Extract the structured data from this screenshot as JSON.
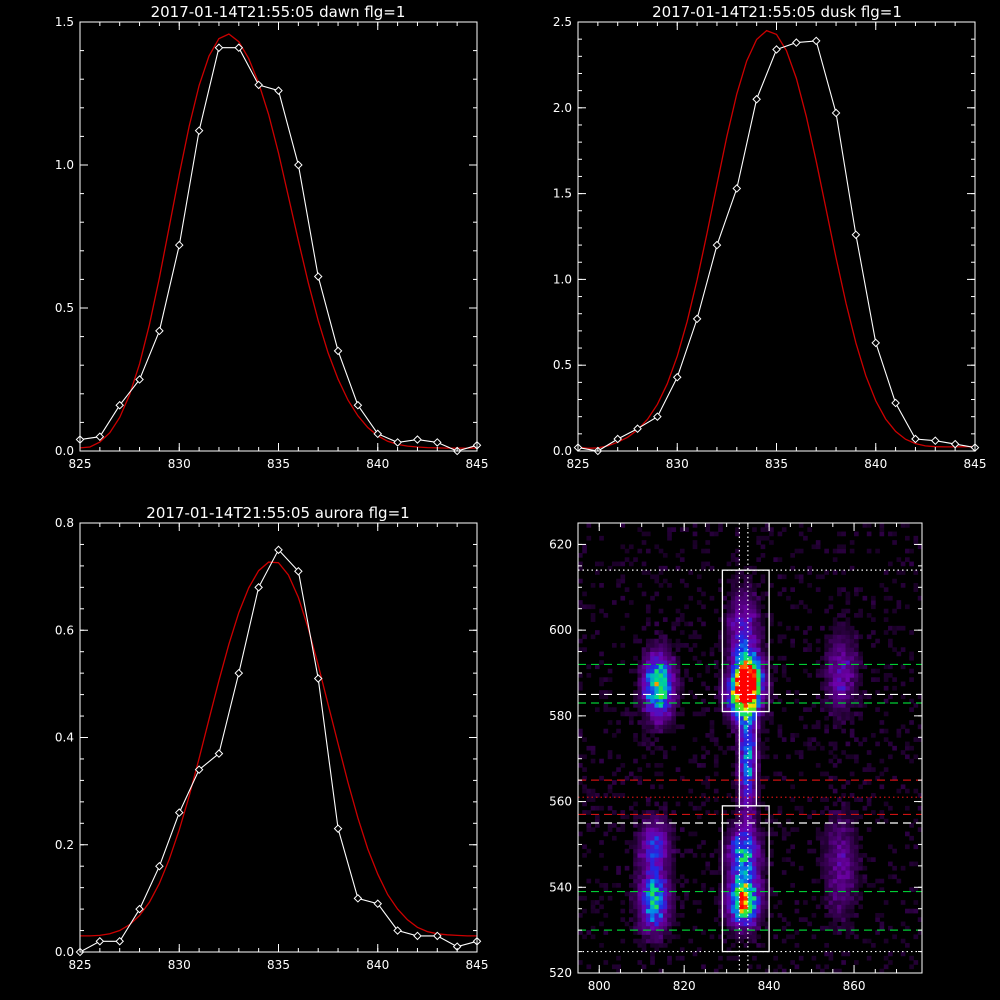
{
  "chart_data": [
    {
      "type": "line",
      "title": "2017-01-14T21:55:05 dawn flg=1",
      "xlim": [
        825,
        845
      ],
      "ylim": [
        0,
        1.5
      ],
      "xticks": [
        825,
        830,
        835,
        840,
        845
      ],
      "yticks": [
        0.0,
        0.5,
        1.0,
        1.5
      ],
      "ytick_labels": [
        "0.0",
        "0.5",
        "1.0",
        "1.5"
      ],
      "colors": {
        "data": "#ffffff",
        "fit": "#cc0000"
      },
      "series": [
        {
          "x": [
            825,
            826,
            827,
            828,
            829,
            830,
            831,
            832,
            833,
            834,
            835,
            836,
            837,
            838,
            839,
            840,
            841,
            842,
            843,
            844,
            845
          ],
          "y": [
            0.04,
            0.05,
            0.16,
            0.25,
            0.42,
            0.72,
            1.12,
            1.41,
            1.41,
            1.28,
            1.26,
            1.0,
            0.61,
            0.35,
            0.16,
            0.06,
            0.03,
            0.04,
            0.03,
            0.0,
            0.02
          ]
        },
        {
          "x": [
            825,
            825.5,
            826,
            826.5,
            827,
            827.5,
            828,
            828.5,
            829,
            829.5,
            830,
            830.5,
            831,
            831.5,
            832,
            832.5,
            833,
            833.5,
            834,
            834.5,
            835,
            835.5,
            836,
            836.5,
            837,
            837.5,
            838,
            838.5,
            839,
            839.5,
            840,
            840.5,
            841,
            841.5,
            842,
            842.5,
            843,
            843.5,
            844,
            844.5,
            845
          ],
          "y": [
            0.011,
            0.014,
            0.031,
            0.064,
            0.117,
            0.197,
            0.305,
            0.443,
            0.606,
            0.785,
            0.967,
            1.136,
            1.278,
            1.381,
            1.442,
            1.458,
            1.431,
            1.372,
            1.287,
            1.177,
            1.042,
            0.89,
            0.735,
            0.588,
            0.456,
            0.343,
            0.251,
            0.178,
            0.123,
            0.082,
            0.053,
            0.034,
            0.023,
            0.017,
            0.014,
            0.012,
            0.011,
            0.01,
            0.01,
            0.01,
            0.01
          ]
        }
      ]
    },
    {
      "type": "line",
      "title": "2017-01-14T21:55:05 dusk flg=1",
      "xlim": [
        825,
        845
      ],
      "ylim": [
        0,
        2.5
      ],
      "xticks": [
        825,
        830,
        835,
        840,
        845
      ],
      "yticks": [
        0.0,
        0.5,
        1.0,
        1.5,
        2.0,
        2.5
      ],
      "ytick_labels": [
        "0.0",
        "0.5",
        "1.0",
        "1.5",
        "2.0",
        "2.5"
      ],
      "colors": {
        "data": "#ffffff",
        "fit": "#cc0000"
      },
      "series": [
        {
          "x": [
            825,
            826,
            827,
            828,
            829,
            830,
            831,
            832,
            833,
            834,
            835,
            836,
            837,
            838,
            839,
            840,
            841,
            842,
            843,
            844,
            845
          ],
          "y": [
            0.02,
            0.0,
            0.07,
            0.13,
            0.2,
            0.43,
            0.77,
            1.2,
            1.53,
            2.05,
            2.34,
            2.38,
            2.39,
            1.97,
            1.26,
            0.63,
            0.28,
            0.07,
            0.06,
            0.04,
            0.02
          ]
        },
        {
          "x": [
            825,
            825.5,
            826,
            826.5,
            827,
            827.5,
            828,
            828.5,
            829,
            829.5,
            830,
            830.5,
            831,
            831.5,
            832,
            832.5,
            833,
            833.5,
            834,
            834.5,
            835,
            835.5,
            836,
            836.5,
            837,
            837.5,
            838,
            838.5,
            839,
            839.5,
            840,
            840.5,
            841,
            841.5,
            842,
            842.5,
            843,
            843.5,
            844,
            844.5,
            845
          ],
          "y": [
            0.022,
            0.016,
            0.018,
            0.03,
            0.051,
            0.08,
            0.123,
            0.185,
            0.272,
            0.392,
            0.553,
            0.756,
            0.997,
            1.268,
            1.555,
            1.834,
            2.081,
            2.273,
            2.398,
            2.45,
            2.428,
            2.334,
            2.171,
            1.95,
            1.689,
            1.409,
            1.127,
            0.862,
            0.63,
            0.439,
            0.292,
            0.186,
            0.114,
            0.069,
            0.043,
            0.03,
            0.025,
            0.024,
            0.024,
            0.025,
            0.026
          ]
        }
      ]
    },
    {
      "type": "line",
      "title": "2017-01-14T21:55:05 aurora flg=1",
      "xlim": [
        825,
        845
      ],
      "ylim": [
        0,
        0.8
      ],
      "xticks": [
        825,
        830,
        835,
        840,
        845
      ],
      "yticks": [
        0.0,
        0.2,
        0.4,
        0.6,
        0.8
      ],
      "ytick_labels": [
        "0.0",
        "0.2",
        "0.4",
        "0.6",
        "0.8"
      ],
      "colors": {
        "data": "#ffffff",
        "fit": "#cc0000"
      },
      "series": [
        {
          "x": [
            825,
            826,
            827,
            828,
            829,
            830,
            831,
            832,
            833,
            834,
            835,
            836,
            837,
            838,
            839,
            840,
            841,
            842,
            843,
            844,
            845
          ],
          "y": [
            0.0,
            0.02,
            0.02,
            0.08,
            0.16,
            0.26,
            0.34,
            0.37,
            0.52,
            0.68,
            0.75,
            0.71,
            0.51,
            0.23,
            0.1,
            0.09,
            0.04,
            0.03,
            0.03,
            0.01,
            0.02
          ]
        },
        {
          "x": [
            825,
            825.5,
            826,
            826.5,
            827,
            827.5,
            828,
            828.5,
            829,
            829.5,
            830,
            830.5,
            831,
            831.5,
            832,
            832.5,
            833,
            833.5,
            834,
            834.5,
            835,
            835.5,
            836,
            836.5,
            837,
            837.5,
            838,
            838.5,
            839,
            839.5,
            840,
            840.5,
            841,
            841.5,
            842,
            842.5,
            843,
            843.5,
            844,
            844.5,
            845
          ],
          "y": [
            0.03,
            0.03,
            0.031,
            0.034,
            0.04,
            0.051,
            0.068,
            0.093,
            0.128,
            0.173,
            0.228,
            0.291,
            0.361,
            0.434,
            0.506,
            0.574,
            0.633,
            0.679,
            0.711,
            0.727,
            0.726,
            0.703,
            0.661,
            0.603,
            0.535,
            0.462,
            0.388,
            0.316,
            0.25,
            0.192,
            0.145,
            0.107,
            0.08,
            0.06,
            0.046,
            0.038,
            0.034,
            0.032,
            0.031,
            0.03,
            0.03
          ]
        }
      ]
    },
    {
      "type": "heatmap",
      "title": "",
      "xlim": [
        795,
        876
      ],
      "ylim": [
        520,
        625
      ],
      "xticks": [
        800,
        820,
        840,
        860
      ],
      "yticks": [
        520,
        540,
        560,
        580,
        600,
        620
      ],
      "colors": {
        "box": "#ffffff",
        "band_green": "#00cc33",
        "band_red": "#cc1111",
        "band_white": "#ffffff"
      },
      "blobs": [
        {
          "x": 814,
          "y": 587,
          "sx": 2.4,
          "sy": 5,
          "amp": 0.75
        },
        {
          "x": 813,
          "y": 537,
          "sx": 2.4,
          "sy": 5,
          "amp": 0.6
        },
        {
          "x": 813,
          "y": 550,
          "sx": 2.4,
          "sy": 4,
          "amp": 0.4
        },
        {
          "x": 835,
          "y": 589,
          "sx": 2.3,
          "sy": 3.5,
          "amp": 1.0
        },
        {
          "x": 834,
          "y": 584,
          "sx": 2.5,
          "sy": 3.5,
          "amp": 0.8
        },
        {
          "x": 834,
          "y": 537,
          "sx": 2.5,
          "sy": 4,
          "amp": 0.85
        },
        {
          "x": 834,
          "y": 548,
          "sx": 2.5,
          "sy": 4,
          "amp": 0.55
        },
        {
          "x": 835,
          "y": 570,
          "sx": 1.5,
          "sy": 9,
          "amp": 0.5
        },
        {
          "x": 834,
          "y": 600,
          "sx": 2.5,
          "sy": 6,
          "amp": 0.35
        },
        {
          "x": 857,
          "y": 590,
          "sx": 2.5,
          "sy": 6,
          "amp": 0.3
        },
        {
          "x": 857,
          "y": 545,
          "sx": 2.5,
          "sy": 8,
          "amp": 0.25
        }
      ],
      "boxes": [
        {
          "x0": 829,
          "x1": 840,
          "y0": 581,
          "y1": 614
        },
        {
          "x0": 829,
          "x1": 840,
          "y0": 525,
          "y1": 559
        },
        {
          "x0": 833,
          "x1": 837,
          "y0": 559,
          "y1": 581
        }
      ],
      "vlines_dotted": [
        833,
        835
      ],
      "hlines": [
        {
          "y": 614,
          "style": "dotted",
          "color": "white"
        },
        {
          "y": 592,
          "style": "dashed",
          "color": "green"
        },
        {
          "y": 585,
          "style": "dashed",
          "color": "white"
        },
        {
          "y": 583,
          "style": "dashed",
          "color": "green"
        },
        {
          "y": 565,
          "style": "dashed",
          "color": "red"
        },
        {
          "y": 561,
          "style": "dotted",
          "color": "red"
        },
        {
          "y": 557,
          "style": "dashed",
          "color": "red"
        },
        {
          "y": 555,
          "style": "dashed",
          "color": "white"
        },
        {
          "y": 539,
          "style": "dashed",
          "color": "green"
        },
        {
          "y": 530,
          "style": "dashed",
          "color": "green"
        },
        {
          "y": 525,
          "style": "dotted",
          "color": "white"
        }
      ]
    }
  ]
}
